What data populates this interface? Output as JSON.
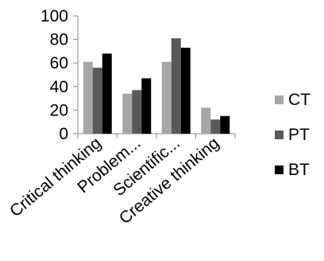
{
  "chart_data": {
    "type": "bar",
    "title": "",
    "xlabel": "",
    "ylabel": "",
    "categories": [
      "Critical thinking",
      "Problem...",
      "Scientific...",
      "Creative thinking"
    ],
    "series": [
      {
        "name": "CT",
        "values": [
          61,
          34,
          61,
          22
        ],
        "color": "#a6a6a6"
      },
      {
        "name": "PT",
        "values": [
          56,
          37,
          81,
          12
        ],
        "color": "#595959"
      },
      {
        "name": "BT",
        "values": [
          68,
          47,
          73,
          15
        ],
        "color": "#000000"
      }
    ],
    "y_ticks": [
      0,
      20,
      40,
      60,
      80,
      100
    ],
    "ylim": [
      0,
      100
    ],
    "grid": false,
    "legend_position": "right"
  }
}
